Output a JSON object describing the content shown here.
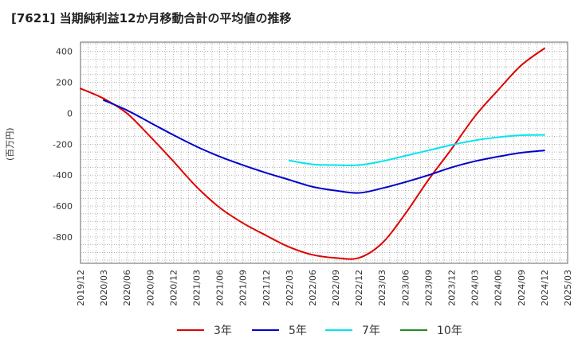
{
  "title": "[7621]  当期純利益12か月移動合計の平均値の推移",
  "chart_data": {
    "type": "line",
    "ylabel": "(百万円)",
    "xlabel": "",
    "ylim": [
      -970,
      460
    ],
    "yticks": [
      400,
      200,
      0,
      -200,
      -400,
      -600,
      -800
    ],
    "xlim": [
      "2019/12",
      "2025/03"
    ],
    "xticks": [
      "2019/12",
      "2020/03",
      "2020/06",
      "2020/09",
      "2020/12",
      "2021/03",
      "2021/06",
      "2021/09",
      "2021/12",
      "2022/03",
      "2022/06",
      "2022/09",
      "2022/12",
      "2023/03",
      "2023/06",
      "2023/09",
      "2023/12",
      "2024/03",
      "2024/06",
      "2024/09",
      "2024/12",
      "2025/03"
    ],
    "grid": true,
    "legend_position": "bottom",
    "series": [
      {
        "name": "3年",
        "color": "#dd0000",
        "x": [
          "2019/12",
          "2020/03",
          "2020/06",
          "2020/09",
          "2020/12",
          "2021/03",
          "2021/06",
          "2021/09",
          "2021/12",
          "2022/03",
          "2022/06",
          "2022/09",
          "2022/12",
          "2023/03",
          "2023/06",
          "2023/09",
          "2023/12",
          "2024/03",
          "2024/06",
          "2024/09",
          "2024/12"
        ],
        "values": [
          160,
          95,
          0,
          -150,
          -310,
          -475,
          -610,
          -710,
          -790,
          -865,
          -915,
          -935,
          -935,
          -840,
          -650,
          -430,
          -230,
          -20,
          150,
          310,
          420
        ]
      },
      {
        "name": "5年",
        "color": "#0000cc",
        "x": [
          "2020/03",
          "2020/06",
          "2020/09",
          "2020/12",
          "2021/03",
          "2021/06",
          "2021/09",
          "2021/12",
          "2022/03",
          "2022/06",
          "2022/09",
          "2022/12",
          "2023/03",
          "2023/06",
          "2023/09",
          "2023/12",
          "2024/03",
          "2024/06",
          "2024/09",
          "2024/12"
        ],
        "values": [
          85,
          20,
          -60,
          -140,
          -215,
          -280,
          -335,
          -385,
          -430,
          -475,
          -500,
          -515,
          -485,
          -445,
          -400,
          -350,
          -310,
          -280,
          -255,
          -240
        ]
      },
      {
        "name": "7年",
        "color": "#00e5ee",
        "x": [
          "2022/03",
          "2022/06",
          "2022/09",
          "2022/12",
          "2023/03",
          "2023/06",
          "2023/09",
          "2023/12",
          "2024/03",
          "2024/06",
          "2024/09",
          "2024/12"
        ],
        "values": [
          -305,
          -330,
          -335,
          -335,
          -310,
          -275,
          -240,
          -205,
          -175,
          -155,
          -142,
          -140
        ]
      },
      {
        "name": "10年",
        "color": "#228b22",
        "x": [],
        "values": []
      }
    ]
  }
}
